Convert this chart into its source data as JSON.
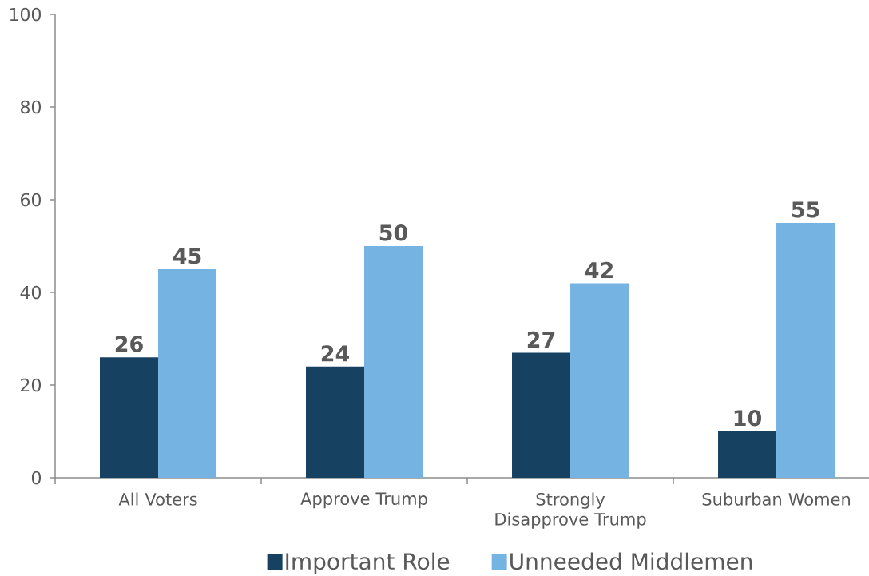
{
  "chart_data": {
    "type": "bar",
    "categories": [
      "All Voters",
      "Approve Trump",
      "Strongly Disapprove Trump",
      "Suburban Women"
    ],
    "series": [
      {
        "name": "Important Role",
        "color": "#174161",
        "values": [
          26,
          24,
          27,
          10
        ]
      },
      {
        "name": "Unneeded Middlemen",
        "color": "#74b3e2",
        "values": [
          45,
          50,
          42,
          55
        ]
      }
    ],
    "ylim": [
      0,
      100
    ],
    "yticks": [
      0,
      20,
      40,
      60,
      80,
      100
    ],
    "data_labels": true,
    "legend": "bottom"
  }
}
